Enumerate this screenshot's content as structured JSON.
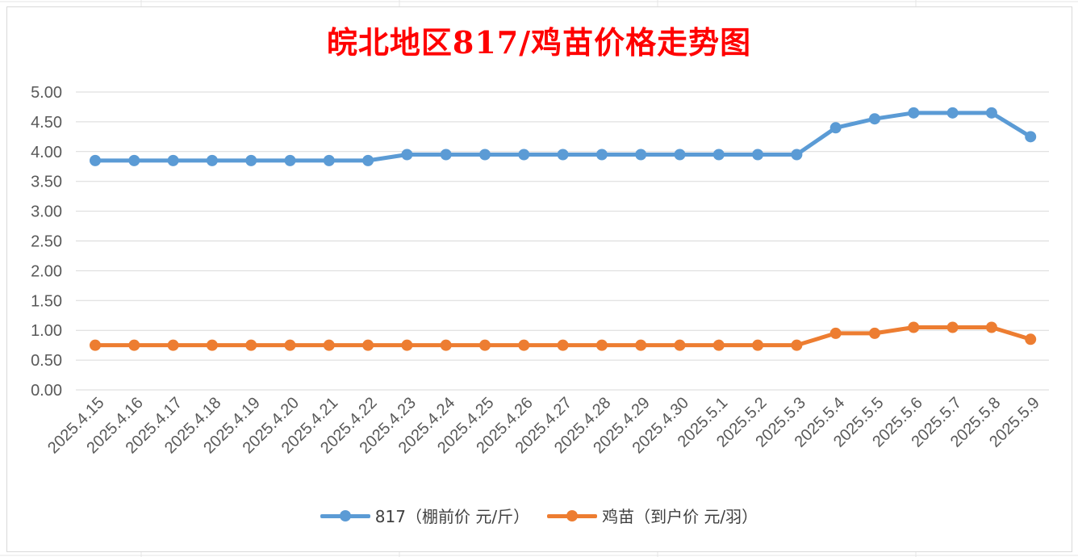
{
  "chart_data": {
    "type": "line",
    "title": "皖北地区817/鸡苗价格走势图",
    "categories": [
      "2025.4.15",
      "2025.4.16",
      "2025.4.17",
      "2025.4.18",
      "2025.4.19",
      "2025.4.20",
      "2025.4.21",
      "2025.4.22",
      "2025.4.23",
      "2025.4.24",
      "2025.4.25",
      "2025.4.26",
      "2025.4.27",
      "2025.4.28",
      "2025.4.29",
      "2025.4.30",
      "2025.5.1",
      "2025.5.2",
      "2025.5.3",
      "2025.5.4",
      "2025.5.5",
      "2025.5.6",
      "2025.5.7",
      "2025.5.8",
      "2025.5.9"
    ],
    "series": [
      {
        "name": "817（棚前价 元/斤）",
        "color": "#5b9bd5",
        "values": [
          3.85,
          3.85,
          3.85,
          3.85,
          3.85,
          3.85,
          3.85,
          3.85,
          3.95,
          3.95,
          3.95,
          3.95,
          3.95,
          3.95,
          3.95,
          3.95,
          3.95,
          3.95,
          3.95,
          4.4,
          4.55,
          4.65,
          4.65,
          4.65,
          4.25
        ]
      },
      {
        "name": "鸡苗（到户价 元/羽）",
        "color": "#ed7d31",
        "values": [
          0.75,
          0.75,
          0.75,
          0.75,
          0.75,
          0.75,
          0.75,
          0.75,
          0.75,
          0.75,
          0.75,
          0.75,
          0.75,
          0.75,
          0.75,
          0.75,
          0.75,
          0.75,
          0.75,
          0.95,
          0.95,
          1.05,
          1.05,
          1.05,
          0.85
        ]
      }
    ],
    "y_ticks": [
      "0.00",
      "0.50",
      "1.00",
      "1.50",
      "2.00",
      "2.50",
      "3.00",
      "3.50",
      "4.00",
      "4.50",
      "5.00"
    ],
    "ylim": [
      0,
      5
    ],
    "grid": true,
    "legend_position": "bottom",
    "title_color": "#ff0000"
  }
}
